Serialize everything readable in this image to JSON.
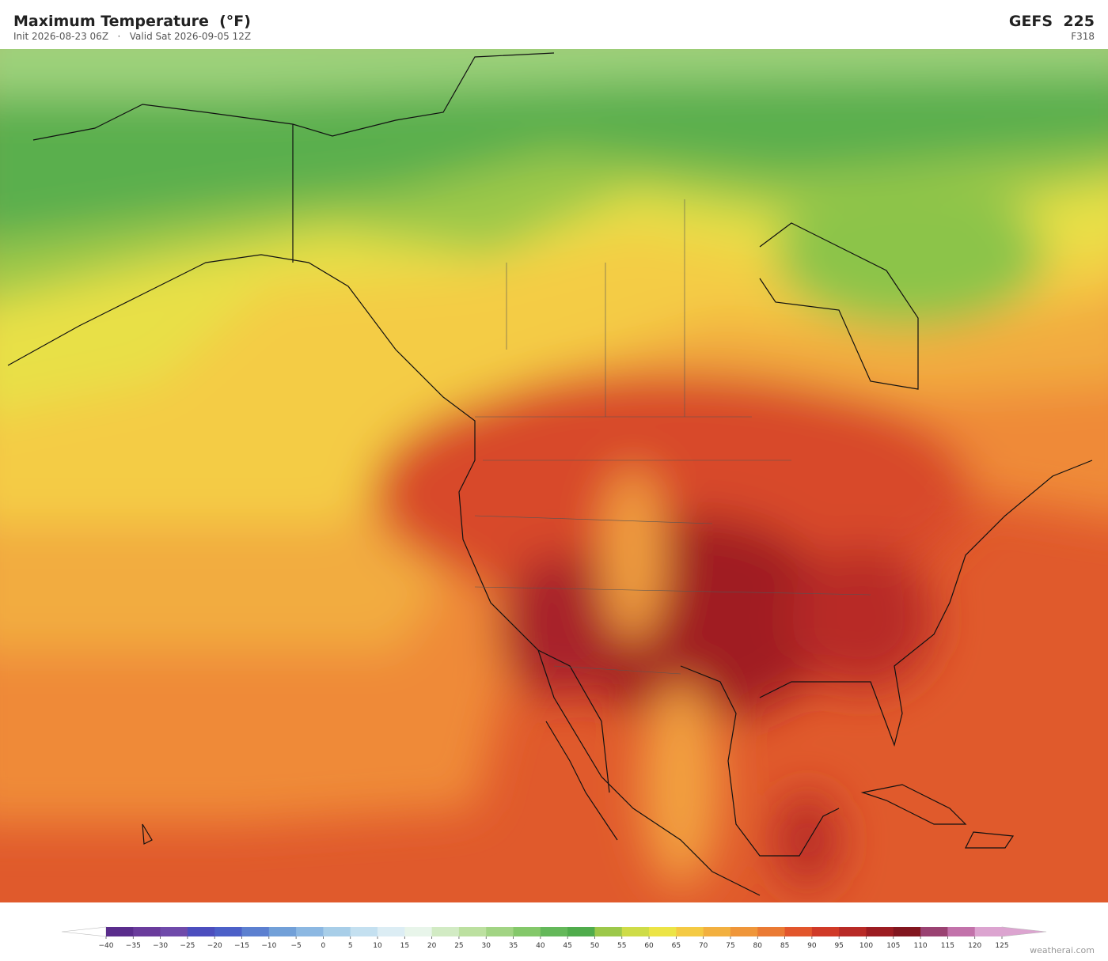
{
  "header": {
    "title": "Maximum Temperature  (°F)",
    "init": "Init 2026-08-23 06Z",
    "separator": "·",
    "valid": "Valid Sat 2026-09-05 12Z",
    "model": "GEFS  225",
    "forecast_hour": "F318"
  },
  "colorbar": {
    "ticks": [
      "−40",
      "−35",
      "−30",
      "−25",
      "−20",
      "−15",
      "−10",
      "−5",
      "0",
      "5",
      "10",
      "15",
      "20",
      "25",
      "30",
      "35",
      "40",
      "45",
      "50",
      "55",
      "60",
      "65",
      "70",
      "75",
      "80",
      "85",
      "90",
      "95",
      "100",
      "105",
      "110",
      "115",
      "120",
      "125"
    ],
    "colors": [
      "#5a2d8c",
      "#6a3c9c",
      "#6f4aaa",
      "#4c4ebe",
      "#4c60c8",
      "#5c80d0",
      "#72a0d8",
      "#8cb8e2",
      "#a8cee8",
      "#c4e0f0",
      "#dcedf4",
      "#e8f5ea",
      "#d2ebc4",
      "#bce0a0",
      "#a2d484",
      "#84c86a",
      "#64b85a",
      "#50ac4c",
      "#9cc84a",
      "#cedc48",
      "#ece446",
      "#f4ca44",
      "#f2b040",
      "#ef963a",
      "#ea7a34",
      "#e2562c",
      "#d03a28",
      "#b82a26",
      "#9c1c22",
      "#82161f",
      "#9a4272",
      "#c272aa",
      "#dca4d0"
    ],
    "under_color": "#ffffff",
    "over_color": "#dca4d0"
  },
  "credit": "weatherai.com"
}
